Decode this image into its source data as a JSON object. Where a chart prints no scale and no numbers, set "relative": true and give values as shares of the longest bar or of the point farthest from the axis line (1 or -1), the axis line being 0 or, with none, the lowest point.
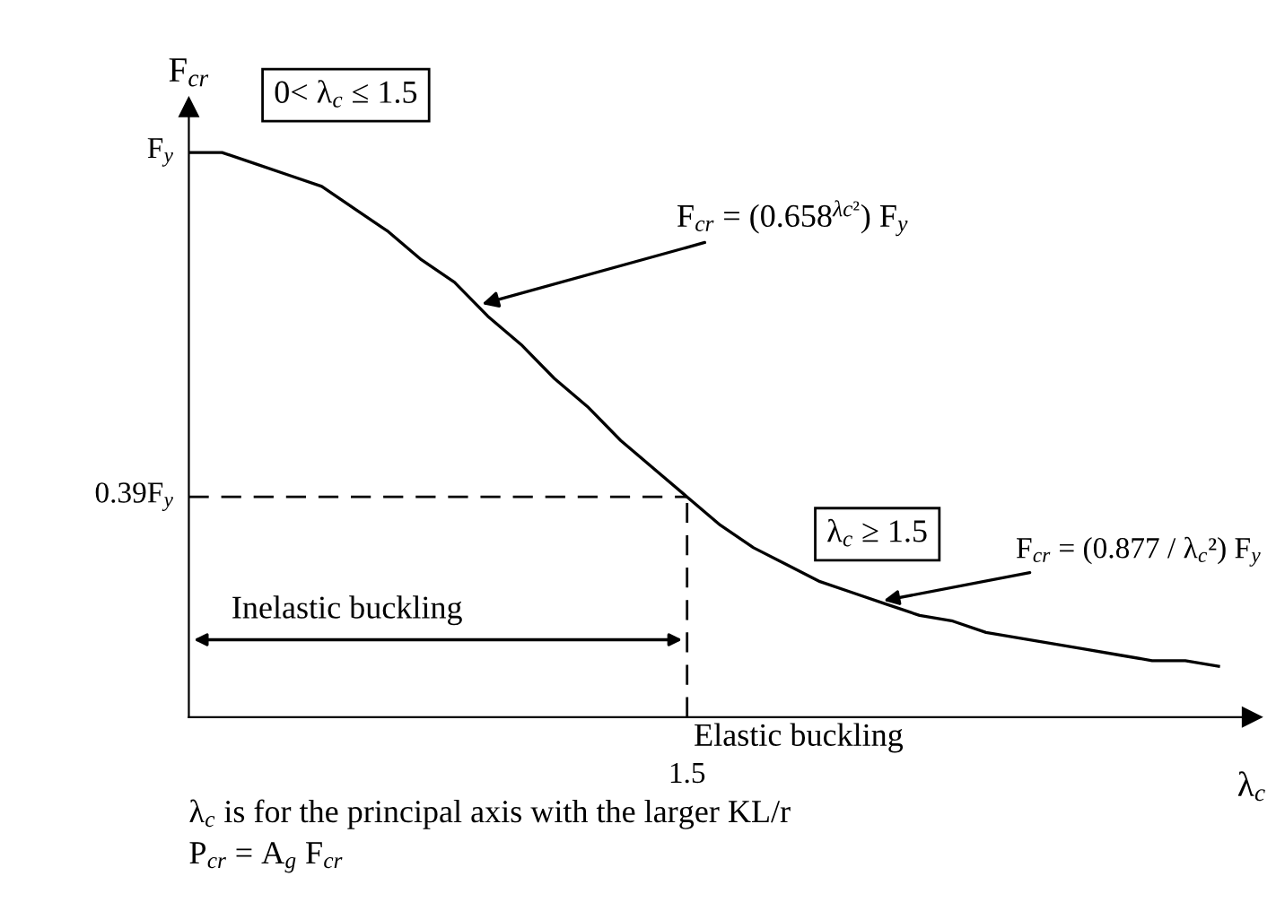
{
  "chart_data": {
    "type": "line",
    "relative": true,
    "xlabel": "λ$_{c}$",
    "ylabel": "F$_{cr}$",
    "categories": [
      null,
      null,
      null,
      null,
      null,
      null,
      null,
      null,
      null,
      null,
      null,
      null,
      null,
      null,
      null,
      null,
      null,
      null,
      null,
      null,
      null,
      null,
      null,
      null,
      null,
      null,
      null,
      null,
      null,
      null,
      null,
      null
    ],
    "series": [
      {
        "color": "#000000",
        "values": [
          1.0,
          1.0,
          0.98,
          0.96,
          0.94,
          0.9,
          0.86,
          0.81,
          0.77,
          0.71,
          0.66,
          0.6,
          0.55,
          0.49,
          0.44,
          0.39,
          0.34,
          0.3,
          0.27,
          0.24,
          0.22,
          0.2,
          0.18,
          0.17,
          0.15,
          0.14,
          0.13,
          0.12,
          0.11,
          0.1,
          0.1,
          0.09
        ]
      }
    ],
    "ref_lines": [
      {
        "axis": "y",
        "value": 0.39,
        "line_style": "dashed",
        "color": "#000000"
      }
    ],
    "annotations": [
      "0< λ$_{c}$ ≤ 1.5",
      "F$_{cr}$ = (0.658$^{λc²}$) F$_{y}$",
      "λ$_{c}$ ≥ 1.5",
      "F$_{cr}$ = (0.877 / λ$_{c}$²) F$_{y}$",
      "Inelastic buckling",
      "Elastic buckling",
      "λ$_{c}$ is for the principal axis with the larger KL/r",
      "P$_{cr}$ = A$_{g}$ F$_{cr}$",
      "F$_{y}$",
      "0.39F$_{y}$",
      "1.5"
    ],
    "marker": "none",
    "line_style": "solid"
  }
}
